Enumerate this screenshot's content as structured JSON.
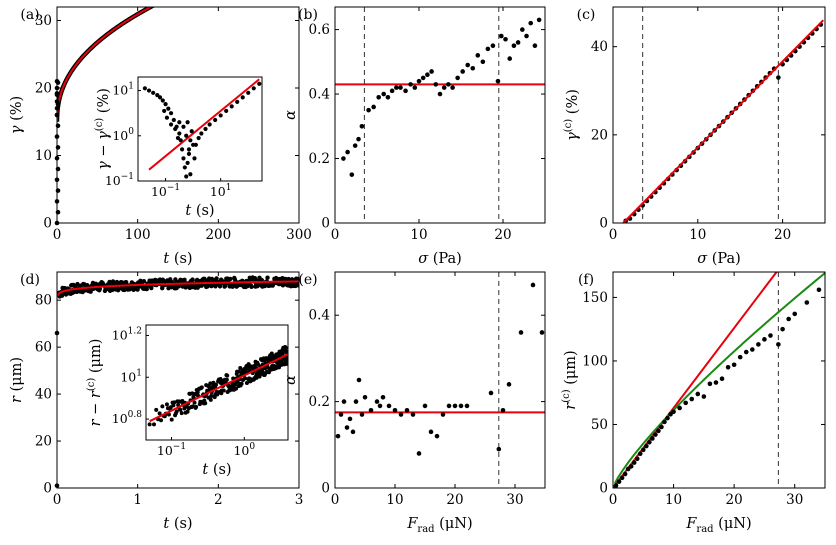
{
  "colors": {
    "fit_red": "#e8000b",
    "fit_green": "#1b8a12",
    "points": "#000000",
    "dashed": "#333333"
  },
  "chart_data": [
    {
      "panel": "(a)",
      "type": "line",
      "xlabel": {
        "var": "t",
        "unit": "(s)"
      },
      "ylabel": {
        "var": "γ",
        "unit": "(%)"
      },
      "xlim": [
        0,
        300
      ],
      "ylim": [
        0,
        32
      ],
      "xticks": [
        0,
        100,
        200,
        300
      ],
      "yticks": [
        0,
        10,
        20,
        30
      ],
      "fit": {
        "color": "red",
        "model": "power",
        "a": 15.0,
        "b": 2.1,
        "alpha": 0.44
      },
      "scatter_early": {
        "t": [
          0,
          0.3,
          0.6,
          0.9,
          1.2,
          1.5,
          1.8,
          2.1,
          2.5,
          3,
          3.5,
          4,
          5,
          6,
          7,
          8,
          10,
          12,
          15,
          20,
          30,
          45,
          60,
          80,
          100,
          130,
          160,
          200,
          240,
          280,
          300
        ],
        "y": [
          0,
          1,
          2,
          3,
          4.5,
          6,
          8,
          10,
          12,
          14,
          16,
          17,
          18,
          19,
          19.5,
          20,
          20.5,
          21,
          21.5,
          22,
          23,
          24,
          25,
          26,
          27,
          28,
          29,
          30,
          30.5,
          31,
          31.5
        ]
      },
      "inset": {
        "xlabel": {
          "var": "t",
          "unit": "(s)"
        },
        "ylabel": {
          "text": "γ − γ",
          "sub": "0",
          "sup": "(c)",
          "unit": "(%)"
        },
        "xlog": [
          -2,
          2.5
        ],
        "ylog": [
          -1,
          1.3
        ],
        "xticks": [
          {
            "exp": -1,
            "label": "10"
          },
          {
            "exp": 1,
            "label": "10"
          }
        ],
        "yticks": [
          {
            "exp": -1,
            "label": "10"
          },
          {
            "exp": 0,
            "label": "10"
          },
          {
            "exp": 1,
            "label": "10"
          }
        ],
        "xtick_sup": [
          "−1",
          "1"
        ],
        "ytick_sup": [
          "−1",
          "0",
          "1"
        ],
        "fit": {
          "exp0": -1.6,
          "val0": -0.75,
          "exp1": 2.4,
          "val1": 1.25
        },
        "points_logxy": [
          [
            -1.75,
            1.05
          ],
          [
            -1.6,
            1.0
          ],
          [
            -1.45,
            0.95
          ],
          [
            -1.3,
            0.9
          ],
          [
            -1.2,
            0.85
          ],
          [
            -1.1,
            0.78
          ],
          [
            -1.0,
            0.7
          ],
          [
            -0.9,
            0.6
          ],
          [
            -0.8,
            0.5
          ],
          [
            -0.7,
            0.35
          ],
          [
            -0.6,
            0.2
          ],
          [
            -0.5,
            0.05
          ],
          [
            -0.45,
            -0.1
          ],
          [
            -0.4,
            -0.3
          ],
          [
            -0.35,
            -0.5
          ],
          [
            -0.3,
            -0.7
          ],
          [
            -0.25,
            -0.9
          ],
          [
            -0.2,
            -0.6
          ],
          [
            -0.15,
            -0.3
          ],
          [
            -0.1,
            -0.1
          ],
          [
            -0.05,
            0.1
          ],
          [
            0,
            -0.2
          ],
          [
            -0.2,
            0.3
          ],
          [
            -0.35,
            0.2
          ],
          [
            -0.55,
            -0.05
          ],
          [
            -0.65,
            0.15
          ],
          [
            -0.8,
            0.25
          ],
          [
            -0.95,
            0.4
          ],
          [
            -1.05,
            0.55
          ],
          [
            -0.5,
            0.3
          ],
          [
            -0.25,
            0.0
          ],
          [
            -0.15,
            -0.4
          ],
          [
            -0.1,
            -0.85
          ],
          [
            0.05,
            -0.5
          ],
          [
            0.1,
            -0.2
          ],
          [
            0.2,
            -0.05
          ],
          [
            0.3,
            0.05
          ],
          [
            0.45,
            0.15
          ],
          [
            0.6,
            0.25
          ],
          [
            0.8,
            0.35
          ],
          [
            1.0,
            0.45
          ],
          [
            1.2,
            0.55
          ],
          [
            1.4,
            0.65
          ],
          [
            1.6,
            0.75
          ],
          [
            1.8,
            0.85
          ],
          [
            2.0,
            0.95
          ],
          [
            2.2,
            1.05
          ],
          [
            2.4,
            1.15
          ]
        ]
      }
    },
    {
      "panel": "(b)",
      "type": "scatter",
      "xlabel": {
        "var": "σ",
        "unit": "(Pa)"
      },
      "ylabel": {
        "var": "α"
      },
      "xlim": [
        0,
        25
      ],
      "ylim": [
        0,
        0.67
      ],
      "xticks": [
        0,
        10,
        20
      ],
      "yticks": [
        0,
        0.2,
        0.4,
        0.6
      ],
      "ytick_labels": [
        "0",
        "0.2",
        "0.4",
        "0.6"
      ],
      "hline": 0.43,
      "vlines": [
        3.5,
        19.5
      ],
      "points": [
        [
          1,
          0.2
        ],
        [
          1.5,
          0.22
        ],
        [
          2,
          0.15
        ],
        [
          2.4,
          0.24
        ],
        [
          2.8,
          0.26
        ],
        [
          3.2,
          0.3
        ],
        [
          4,
          0.35
        ],
        [
          4.6,
          0.36
        ],
        [
          5.2,
          0.39
        ],
        [
          5.8,
          0.4
        ],
        [
          6.3,
          0.39
        ],
        [
          6.8,
          0.41
        ],
        [
          7.3,
          0.42
        ],
        [
          7.8,
          0.42
        ],
        [
          8.4,
          0.41
        ],
        [
          9,
          0.43
        ],
        [
          9.5,
          0.42
        ],
        [
          10,
          0.44
        ],
        [
          10.5,
          0.45
        ],
        [
          11,
          0.46
        ],
        [
          11.5,
          0.47
        ],
        [
          12,
          0.43
        ],
        [
          12.5,
          0.4
        ],
        [
          13,
          0.42
        ],
        [
          13.5,
          0.43
        ],
        [
          14,
          0.42
        ],
        [
          14.6,
          0.45
        ],
        [
          15.2,
          0.47
        ],
        [
          15.8,
          0.49
        ],
        [
          16.4,
          0.48
        ],
        [
          17,
          0.52
        ],
        [
          17.6,
          0.5
        ],
        [
          18.2,
          0.54
        ],
        [
          18.8,
          0.55
        ],
        [
          19.4,
          0.44
        ],
        [
          19.8,
          0.58
        ],
        [
          20.3,
          0.57
        ],
        [
          20.8,
          0.51
        ],
        [
          21.3,
          0.55
        ],
        [
          21.8,
          0.56
        ],
        [
          22.3,
          0.6
        ],
        [
          22.8,
          0.58
        ],
        [
          23.3,
          0.62
        ],
        [
          23.8,
          0.55
        ],
        [
          24.3,
          0.63
        ]
      ]
    },
    {
      "panel": "(c)",
      "type": "scatter",
      "xlabel": {
        "var": "σ",
        "unit": "(Pa)"
      },
      "ylabel": {
        "text": "γ",
        "sub": "0",
        "sup": "(c)",
        "unit": "(%)"
      },
      "xlim": [
        0,
        25
      ],
      "ylim": [
        0,
        49
      ],
      "xticks": [
        0,
        10,
        20
      ],
      "yticks": [
        0,
        20,
        40
      ],
      "vlines": [
        3.5,
        19.5
      ],
      "fit": {
        "x": [
          1.2,
          24.8
        ],
        "y": [
          0,
          46
        ]
      },
      "points": [
        [
          1.5,
          0.5
        ],
        [
          2,
          1
        ],
        [
          2.5,
          2
        ],
        [
          3,
          3
        ],
        [
          3.5,
          4
        ],
        [
          4,
          5
        ],
        [
          4.5,
          6
        ],
        [
          5,
          7
        ],
        [
          5.5,
          8
        ],
        [
          6,
          9
        ],
        [
          6.5,
          10
        ],
        [
          7,
          11
        ],
        [
          7.5,
          12
        ],
        [
          8,
          13
        ],
        [
          8.5,
          14
        ],
        [
          9,
          15
        ],
        [
          9.5,
          16
        ],
        [
          10,
          17
        ],
        [
          10.5,
          18
        ],
        [
          11,
          19
        ],
        [
          11.5,
          20
        ],
        [
          12,
          21
        ],
        [
          12.5,
          22
        ],
        [
          13,
          23
        ],
        [
          13.5,
          24
        ],
        [
          14,
          25
        ],
        [
          14.5,
          26
        ],
        [
          15,
          27
        ],
        [
          15.5,
          28
        ],
        [
          16,
          29
        ],
        [
          16.5,
          30
        ],
        [
          17,
          31
        ],
        [
          17.5,
          32
        ],
        [
          18,
          33
        ],
        [
          18.5,
          34
        ],
        [
          19,
          35
        ],
        [
          19.5,
          33
        ],
        [
          20,
          36
        ],
        [
          20.5,
          37
        ],
        [
          21,
          38
        ],
        [
          21.5,
          39
        ],
        [
          22,
          40
        ],
        [
          22.5,
          41
        ],
        [
          23,
          42
        ],
        [
          23.5,
          43
        ],
        [
          24,
          44
        ],
        [
          24.5,
          45
        ]
      ]
    },
    {
      "panel": "(d)",
      "type": "line",
      "xlabel": {
        "var": "t",
        "unit": "(s)"
      },
      "ylabel": {
        "var": "r",
        "unit": "(μm)"
      },
      "xlim": [
        0,
        3
      ],
      "ylim": [
        0,
        92
      ],
      "xticks": [
        0,
        1,
        2,
        3
      ],
      "yticks": [
        0,
        20,
        40,
        60,
        80
      ],
      "inset": {
        "xlabel": {
          "var": "t",
          "unit": "(s)"
        },
        "ylabel": {
          "text": "r − r",
          "sub": "0",
          "sup": "(c)",
          "unit": "(μm)"
        },
        "xlog": [
          -1.35,
          0.6
        ],
        "ylog": [
          0.7,
          1.25
        ],
        "xticks": [
          {
            "exp": -1,
            "label": "10"
          },
          {
            "exp": 0,
            "label": "10"
          }
        ],
        "xtick_sup": [
          "−1",
          "0"
        ],
        "yticks": [
          {
            "exp": 0.8,
            "label": "10"
          },
          {
            "exp": 1,
            "label": "10"
          },
          {
            "exp": 1.2,
            "label": "10"
          }
        ],
        "ytick_sup": [
          "0.8",
          "1",
          "1.2"
        ],
        "fit": {
          "exp0": -1.3,
          "val0": 0.79,
          "exp1": 0.6,
          "val1": 1.11
        }
      }
    },
    {
      "panel": "(e)",
      "type": "scatter",
      "xlabel": {
        "var": "F",
        "sub": "rad",
        "unit": "(μN)"
      },
      "ylabel": {
        "var": "α"
      },
      "xlim": [
        0,
        35
      ],
      "ylim": [
        0,
        0.5
      ],
      "xticks": [
        0,
        10,
        20,
        30
      ],
      "yticks": [
        0,
        0.2,
        0.4
      ],
      "ytick_labels": [
        "0",
        "0.2",
        "0.4"
      ],
      "hline": 0.175,
      "vlines": [
        27.3
      ],
      "points": [
        [
          0.5,
          0.12
        ],
        [
          1,
          0.17
        ],
        [
          1.5,
          0.2
        ],
        [
          2,
          0.14
        ],
        [
          2.5,
          0.16
        ],
        [
          3,
          0.13
        ],
        [
          3.5,
          0.2
        ],
        [
          4,
          0.25
        ],
        [
          4.5,
          0.17
        ],
        [
          5,
          0.21
        ],
        [
          6,
          0.18
        ],
        [
          7,
          0.2
        ],
        [
          7.5,
          0.19
        ],
        [
          8,
          0.21
        ],
        [
          9,
          0.19
        ],
        [
          10,
          0.18
        ],
        [
          11,
          0.17
        ],
        [
          12,
          0.18
        ],
        [
          13,
          0.17
        ],
        [
          14,
          0.08
        ],
        [
          15,
          0.19
        ],
        [
          16,
          0.13
        ],
        [
          17,
          0.12
        ],
        [
          18,
          0.17
        ],
        [
          19,
          0.19
        ],
        [
          20,
          0.19
        ],
        [
          21,
          0.19
        ],
        [
          22,
          0.19
        ],
        [
          26,
          0.22
        ],
        [
          27.3,
          0.09
        ],
        [
          28,
          0.18
        ],
        [
          29,
          0.24
        ],
        [
          31,
          0.36
        ],
        [
          33,
          0.47
        ],
        [
          34.5,
          0.36
        ]
      ]
    },
    {
      "panel": "(f)",
      "type": "scatter",
      "xlabel": {
        "var": "F",
        "sub": "rad",
        "unit": "(μN)"
      },
      "ylabel": {
        "text": "r",
        "sub": "0",
        "sup": "(c)",
        "unit": "(μm)"
      },
      "xlim": [
        0,
        35
      ],
      "ylim": [
        0,
        170
      ],
      "xticks": [
        0,
        10,
        20,
        30
      ],
      "yticks": [
        0,
        50,
        100,
        150
      ],
      "vlines": [
        27.3
      ],
      "fit_red": {
        "x": [
          0,
          27
        ],
        "y": [
          0,
          170
        ]
      },
      "fit_green": {
        "model": "power",
        "a": 9.5,
        "b": 0.81,
        "x": [
          0.3,
          35
        ]
      },
      "points": [
        [
          0.5,
          2
        ],
        [
          1,
          5
        ],
        [
          1.5,
          8
        ],
        [
          2,
          11
        ],
        [
          2.5,
          15
        ],
        [
          3,
          17
        ],
        [
          3.5,
          20
        ],
        [
          4,
          23
        ],
        [
          4.5,
          27
        ],
        [
          5,
          30
        ],
        [
          5.5,
          33
        ],
        [
          6,
          36
        ],
        [
          6.5,
          39
        ],
        [
          7,
          42
        ],
        [
          7.5,
          45
        ],
        [
          8,
          48
        ],
        [
          8.5,
          52
        ],
        [
          9,
          55
        ],
        [
          9.5,
          58
        ],
        [
          10,
          60
        ],
        [
          11,
          63
        ],
        [
          12,
          67
        ],
        [
          13,
          70
        ],
        [
          14,
          74
        ],
        [
          15,
          72
        ],
        [
          16,
          82
        ],
        [
          17,
          83
        ],
        [
          18,
          86
        ],
        [
          19,
          95
        ],
        [
          20,
          97
        ],
        [
          21,
          103
        ],
        [
          22,
          107
        ],
        [
          23,
          109
        ],
        [
          24,
          113
        ],
        [
          25,
          117
        ],
        [
          26,
          120
        ],
        [
          27.3,
          113
        ],
        [
          28,
          125
        ],
        [
          29,
          133
        ],
        [
          30,
          137
        ],
        [
          32,
          146
        ],
        [
          34,
          156
        ]
      ]
    }
  ]
}
